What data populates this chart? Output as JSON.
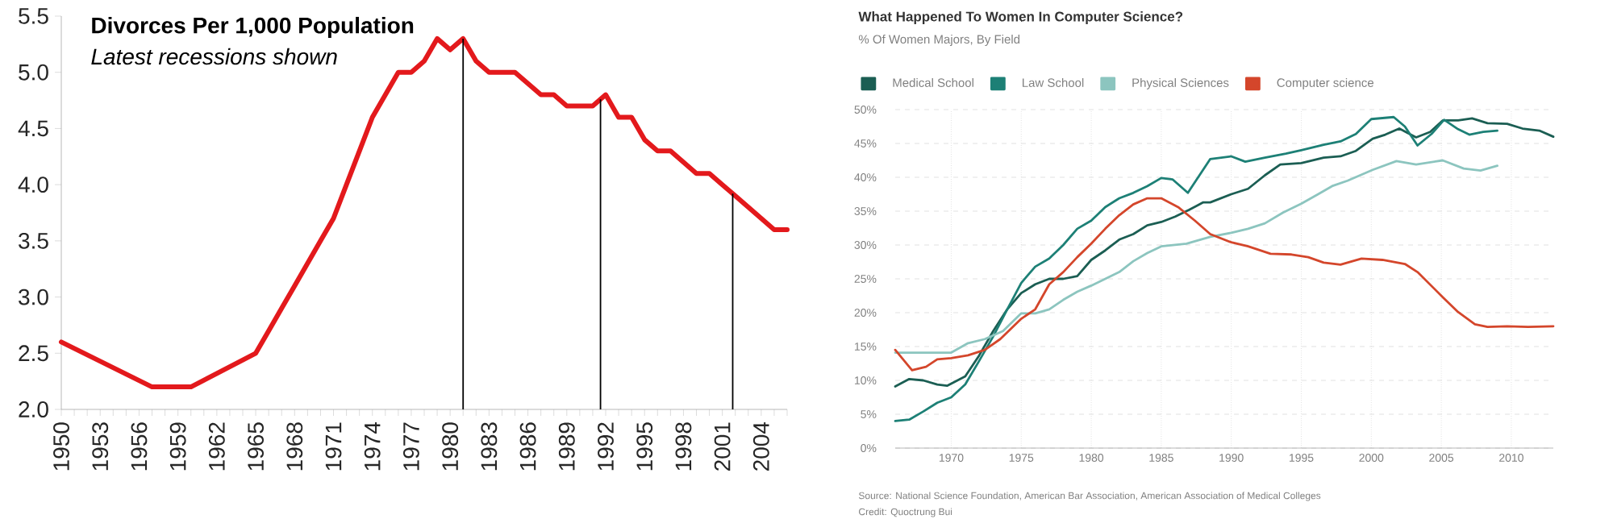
{
  "chart_data": [
    {
      "type": "line",
      "title": "Divorces Per 1,000 Population",
      "subtitle": "Latest recessions shown",
      "series": [
        {
          "color": "#e3191c",
          "x": [
            1950,
            1957,
            1958,
            1959,
            1960,
            1965,
            1966,
            1967,
            1968,
            1969,
            1970,
            1971,
            1972,
            1973,
            1974,
            1975,
            1976,
            1977,
            1978,
            1979,
            1980,
            1981,
            1982,
            1983,
            1984,
            1985,
            1986,
            1987,
            1988,
            1989,
            1990,
            1991,
            1992,
            1993,
            1994,
            1995,
            1996,
            1997,
            1998,
            1999,
            2000,
            2001,
            2002,
            2003,
            2004,
            2005,
            2006
          ],
          "values": [
            2.6,
            2.2,
            2.2,
            2.2,
            2.2,
            2.5,
            2.7,
            2.9,
            3.1,
            3.3,
            3.5,
            3.7,
            4.0,
            4.3,
            4.6,
            4.8,
            5.0,
            5.0,
            5.1,
            5.3,
            5.2,
            5.3,
            5.1,
            5.0,
            5.0,
            5.0,
            4.9,
            4.8,
            4.8,
            4.7,
            4.7,
            4.7,
            4.8,
            4.6,
            4.6,
            4.4,
            4.3,
            4.3,
            4.2,
            4.1,
            4.1,
            4.0,
            3.9,
            3.8,
            3.7,
            3.6,
            3.6
          ]
        }
      ],
      "xlim": [
        1950,
        2006
      ],
      "ylim": [
        2,
        5.5
      ],
      "xticks": [
        {
          "value": 1950,
          "label": "1950"
        },
        {
          "value": 1951,
          "label": null
        },
        {
          "value": 1952,
          "label": null
        },
        {
          "value": 1953,
          "label": "1953"
        },
        {
          "value": 1954,
          "label": null
        },
        {
          "value": 1955,
          "label": null
        },
        {
          "value": 1956,
          "label": "1956"
        },
        {
          "value": 1957,
          "label": null
        },
        {
          "value": 1958,
          "label": null
        },
        {
          "value": 1959,
          "label": "1959"
        },
        {
          "value": 1960,
          "label": null
        },
        {
          "value": 1961,
          "label": null
        },
        {
          "value": 1962,
          "label": "1962"
        },
        {
          "value": 1963,
          "label": null
        },
        {
          "value": 1964,
          "label": null
        },
        {
          "value": 1965,
          "label": "1965"
        },
        {
          "value": 1966,
          "label": null
        },
        {
          "value": 1967,
          "label": null
        },
        {
          "value": 1968,
          "label": "1968"
        },
        {
          "value": 1969,
          "label": null
        },
        {
          "value": 1970,
          "label": null
        },
        {
          "value": 1971,
          "label": "1971"
        },
        {
          "value": 1972,
          "label": null
        },
        {
          "value": 1973,
          "label": null
        },
        {
          "value": 1974,
          "label": "1974"
        },
        {
          "value": 1975,
          "label": null
        },
        {
          "value": 1976,
          "label": null
        },
        {
          "value": 1977,
          "label": "1977"
        },
        {
          "value": 1978,
          "label": null
        },
        {
          "value": 1979,
          "label": null
        },
        {
          "value": 1980,
          "label": "1980"
        },
        {
          "value": 1981,
          "label": null
        },
        {
          "value": 1982,
          "label": null
        },
        {
          "value": 1983,
          "label": "1983"
        },
        {
          "value": 1984,
          "label": null
        },
        {
          "value": 1985,
          "label": null
        },
        {
          "value": 1986,
          "label": "1986"
        },
        {
          "value": 1987,
          "label": null
        },
        {
          "value": 1988,
          "label": null
        },
        {
          "value": 1989,
          "label": "1989"
        },
        {
          "value": 1990,
          "label": null
        },
        {
          "value": 1991,
          "label": null
        },
        {
          "value": 1992,
          "label": "1992"
        },
        {
          "value": 1993,
          "label": null
        },
        {
          "value": 1994,
          "label": null
        },
        {
          "value": 1995,
          "label": "1995"
        },
        {
          "value": 1996,
          "label": null
        },
        {
          "value": 1997,
          "label": null
        },
        {
          "value": 1998,
          "label": "1998"
        },
        {
          "value": 1999,
          "label": null
        },
        {
          "value": 2000,
          "label": null
        },
        {
          "value": 2001,
          "label": "2001"
        },
        {
          "value": 2002,
          "label": null
        },
        {
          "value": 2003,
          "label": null
        },
        {
          "value": 2004,
          "label": "2004"
        },
        {
          "value": 2005,
          "label": null
        },
        {
          "value": 2006,
          "label": null
        }
      ],
      "yticks": [
        {
          "value": 2,
          "label": "2.0"
        },
        {
          "value": 2.5,
          "label": "2.5"
        },
        {
          "value": 3,
          "label": "3.0"
        },
        {
          "value": 3.5,
          "label": "3.5"
        },
        {
          "value": 4,
          "label": "4.0"
        },
        {
          "value": 4.5,
          "label": "4.5"
        },
        {
          "value": 5,
          "label": "5.0"
        },
        {
          "value": 5.5,
          "label": "5.5"
        }
      ],
      "ref_lines": [
        {
          "axis": "x",
          "value": 1981,
          "color": "#000000"
        },
        {
          "axis": "x",
          "value": 1991.6,
          "color": "#000000"
        },
        {
          "axis": "x",
          "value": 2001.8,
          "color": "#000000"
        }
      ]
    },
    {
      "type": "line",
      "title": "What Happened To Women In Computer Science?",
      "subtitle": "% Of Women Majors, By Field",
      "series": [
        {
          "name": "Medical School",
          "color": "#1b5e53",
          "x": [
            1966,
            1967,
            1968,
            1969,
            1969.7,
            1971,
            1972,
            1973,
            1974,
            1975,
            1976,
            1977,
            1978,
            1979,
            1980,
            1981,
            1982,
            1983,
            1984,
            1985,
            1986,
            1987,
            1988,
            1988.5,
            1990,
            1991.2,
            1992.4,
            1993.5,
            1995,
            1996.6,
            1997.8,
            1998.9,
            2000.1,
            2001,
            2002,
            2003.2,
            2004.2,
            2005.1,
            2006.2,
            2007.2,
            2008.3,
            2009.7,
            2010.8,
            2012,
            2013
          ],
          "values": [
            9.1,
            10.2,
            10.0,
            9.4,
            9.2,
            10.6,
            13.7,
            17.3,
            20.5,
            22.9,
            24.2,
            25,
            25,
            25.4,
            27.8,
            29.2,
            30.8,
            31.6,
            32.9,
            33.4,
            34.2,
            35.2,
            36.3,
            36.3,
            37.5,
            38.3,
            40.3,
            41.9,
            42.1,
            42.9,
            43.1,
            43.9,
            45.7,
            46.3,
            47.2,
            45.9,
            46.7,
            48.4,
            48.4,
            48.7,
            48.0,
            47.9,
            47.2,
            46.9,
            46.0
          ]
        },
        {
          "name": "Law School",
          "color": "#1d8076",
          "x": [
            1966,
            1967,
            1968,
            1969,
            1970,
            1971,
            1972,
            1973,
            1974,
            1975,
            1976,
            1977,
            1978,
            1979,
            1980,
            1981,
            1982,
            1983,
            1984,
            1985,
            1985.8,
            1986.9,
            1988.5,
            1990,
            1991,
            1992.4,
            1993.9,
            1995,
            1996.6,
            1997.8,
            1998.9,
            2000,
            2001.6,
            2002.4,
            2003.3,
            2004.3,
            2005.2,
            2006.2,
            2007,
            2008,
            2009
          ],
          "values": [
            4.0,
            4.2,
            5.4,
            6.7,
            7.5,
            9.4,
            12.9,
            16.5,
            20.5,
            24.4,
            26.8,
            28,
            30,
            32.4,
            33.6,
            35.6,
            36.9,
            37.7,
            38.7,
            39.9,
            39.7,
            37.7,
            42.7,
            43.1,
            42.3,
            42.9,
            43.5,
            44,
            44.8,
            45.3,
            46.4,
            48.6,
            48.9,
            47.5,
            44.7,
            46.4,
            48.5,
            47.1,
            46.3,
            46.7,
            46.9
          ]
        },
        {
          "name": "Physical Sciences",
          "color": "#8cc5bf",
          "x": [
            1966,
            1970,
            1971.2,
            1972.4,
            1973.7,
            1975,
            1976,
            1977,
            1978,
            1979,
            1980,
            1981,
            1982,
            1983,
            1984,
            1985,
            1986.8,
            1988.5,
            1990,
            1991.2,
            1992.4,
            1993.7,
            1995,
            1996.2,
            1997.2,
            1998.3,
            2000.1,
            2001.8,
            2003.2,
            2005.1,
            2006.6,
            2007.8,
            2009
          ],
          "values": [
            14.1,
            14.1,
            15.5,
            16.1,
            17.3,
            19.9,
            19.9,
            20.5,
            21.9,
            23.1,
            24,
            25,
            26,
            27.6,
            28.8,
            29.8,
            30.2,
            31.2,
            31.8,
            32.4,
            33.2,
            34.8,
            36.1,
            37.5,
            38.7,
            39.5,
            41.1,
            42.4,
            41.9,
            42.5,
            41.3,
            41.0,
            41.7
          ]
        },
        {
          "name": "Computer science",
          "color": "#d4462b",
          "x": [
            1966,
            1967.2,
            1968.2,
            1969,
            1970,
            1971.2,
            1972.4,
            1973.5,
            1975,
            1976,
            1977,
            1978,
            1979,
            1980,
            1981,
            1982,
            1983,
            1984,
            1985,
            1986.2,
            1987.4,
            1988.5,
            1990,
            1991.2,
            1992.8,
            1994.3,
            1995.5,
            1996.6,
            1997.8,
            1999.3,
            2000.8,
            2002.4,
            2003.3,
            2005.1,
            2006.2,
            2007.4,
            2008.3,
            2009.7,
            2011.2,
            2013
          ],
          "values": [
            14.5,
            11.5,
            12,
            13.1,
            13.3,
            13.7,
            14.5,
            16.1,
            19.1,
            20.5,
            24.2,
            26,
            28.2,
            30.2,
            32.4,
            34.4,
            36,
            36.9,
            36.9,
            35.6,
            33.6,
            31.6,
            30.4,
            29.8,
            28.7,
            28.6,
            28.2,
            27.4,
            27.1,
            28,
            27.8,
            27.2,
            26,
            22.3,
            20.1,
            18.3,
            17.9,
            18,
            17.9,
            18
          ]
        }
      ],
      "xlim": [
        1966,
        2013
      ],
      "ylim": [
        0,
        50
      ],
      "xticks": [
        1970,
        1975,
        1980,
        1985,
        1990,
        1995,
        2000,
        2005,
        2010
      ],
      "yticks": [
        {
          "value": 0,
          "label": "0%"
        },
        {
          "value": 5,
          "label": "5%"
        },
        {
          "value": 10,
          "label": "10%"
        },
        {
          "value": 15,
          "label": "15%"
        },
        {
          "value": 20,
          "label": "20%"
        },
        {
          "value": 25,
          "label": "25%"
        },
        {
          "value": 30,
          "label": "30%"
        },
        {
          "value": 35,
          "label": "35%"
        },
        {
          "value": 40,
          "label": "40%"
        },
        {
          "value": 45,
          "label": "45%"
        },
        {
          "value": 50,
          "label": "50%"
        }
      ],
      "grid": true,
      "legend": "top",
      "annotations": [
        "Source: National Science Foundation, American Bar Association, American Association of Medical Colleges",
        "Credit: Quoctrung Bui"
      ]
    }
  ]
}
